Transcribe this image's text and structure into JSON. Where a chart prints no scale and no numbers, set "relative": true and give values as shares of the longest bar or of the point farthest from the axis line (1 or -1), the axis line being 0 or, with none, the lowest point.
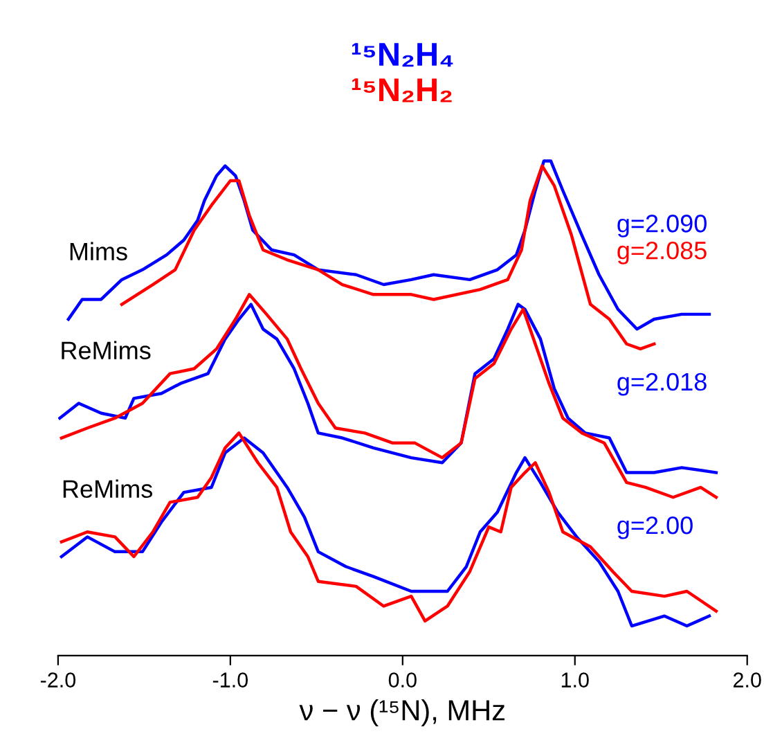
{
  "chart_data": {
    "type": "line",
    "relative": true,
    "xlabel": "ν − ν (¹⁵N), MHz",
    "xlim": [
      -2,
      2
    ],
    "xticks": [
      {
        "value": -2,
        "label": "-2.0"
      },
      {
        "value": -1,
        "label": "-1.0"
      },
      {
        "value": 0,
        "label": "0.0"
      },
      {
        "value": 1,
        "label": "1.0"
      },
      {
        "value": 2,
        "label": "2.0"
      }
    ],
    "tick_labels": "x",
    "grid": false,
    "legend": "top",
    "marker": "none",
    "line_style": "solid",
    "annotations": [
      "Mims",
      "ReMims",
      "ReMims",
      "g=2.090",
      "g=2.085",
      "g=2.018",
      "g=2.00"
    ],
    "series": [
      {
        "name": "¹⁵N₂H₄",
        "color": "#0000ff",
        "x": [
          -1.94,
          -1.86,
          -1.75,
          -1.63,
          -1.51,
          -1.37,
          -1.27,
          -1.19,
          -1.15,
          -1.08,
          -1.03,
          -0.97,
          -0.92,
          -0.87,
          -0.76,
          -0.63,
          -0.49,
          -0.27,
          -0.11,
          0.05,
          0.18,
          0.39,
          0.55,
          0.66,
          0.71,
          0.77,
          0.82,
          0.86,
          0.93,
          1.04,
          1.14,
          1.25,
          1.36,
          1.46,
          1.62,
          1.78
        ],
        "values": [
          0.68,
          0.72,
          0.72,
          0.76,
          0.78,
          0.81,
          0.84,
          0.88,
          0.92,
          0.97,
          0.99,
          0.97,
          0.92,
          0.86,
          0.82,
          0.81,
          0.78,
          0.77,
          0.75,
          0.76,
          0.77,
          0.76,
          0.78,
          0.81,
          0.86,
          0.94,
          1.0,
          1.0,
          0.94,
          0.85,
          0.77,
          0.7,
          0.66,
          0.68,
          0.69,
          0.69
        ]
      },
      {
        "name": "¹⁵N₂H₂",
        "color": "#ff0000",
        "x": [
          -1.63,
          -1.45,
          -1.32,
          -1.21,
          -1.11,
          -1.0,
          -0.95,
          -0.89,
          -0.81,
          -0.67,
          -0.49,
          -0.35,
          -0.17,
          0.05,
          0.18,
          0.45,
          0.61,
          0.69,
          0.74,
          0.81,
          0.88,
          0.98,
          1.09,
          1.2,
          1.3,
          1.38,
          1.46
        ],
        "values": [
          0.71,
          0.75,
          0.78,
          0.86,
          0.91,
          0.96,
          0.96,
          0.89,
          0.82,
          0.8,
          0.78,
          0.75,
          0.73,
          0.73,
          0.72,
          0.74,
          0.76,
          0.82,
          0.92,
          0.99,
          0.95,
          0.85,
          0.71,
          0.68,
          0.63,
          0.62,
          0.63
        ]
      },
      {
        "color": "#0000ff",
        "x": [
          -1.99,
          -1.88,
          -1.75,
          -1.61,
          -1.56,
          -1.4,
          -1.29,
          -1.13,
          -1.03,
          -0.95,
          -0.88,
          -0.81,
          -0.73,
          -0.63,
          -0.55,
          -0.49,
          -0.35,
          -0.17,
          0.05,
          0.23,
          0.34,
          0.42,
          0.53,
          0.61,
          0.67,
          0.71,
          0.8,
          0.88,
          0.96,
          1.06,
          1.2,
          1.3,
          1.46,
          1.62,
          1.82
        ],
        "values": [
          0.48,
          0.51,
          0.49,
          0.48,
          0.52,
          0.53,
          0.55,
          0.57,
          0.64,
          0.68,
          0.71,
          0.66,
          0.64,
          0.58,
          0.51,
          0.45,
          0.44,
          0.42,
          0.4,
          0.39,
          0.43,
          0.57,
          0.6,
          0.66,
          0.71,
          0.7,
          0.64,
          0.54,
          0.48,
          0.45,
          0.44,
          0.37,
          0.37,
          0.38,
          0.37
        ]
      },
      {
        "color": "#ff0000",
        "x": [
          -1.98,
          -1.83,
          -1.67,
          -1.51,
          -1.35,
          -1.21,
          -1.08,
          -0.97,
          -0.89,
          -0.79,
          -0.67,
          -0.59,
          -0.49,
          -0.39,
          -0.22,
          -0.06,
          0.07,
          0.23,
          0.34,
          0.42,
          0.53,
          0.63,
          0.7,
          0.77,
          0.85,
          0.93,
          1.04,
          1.17,
          1.3,
          1.41,
          1.57,
          1.73,
          1.82
        ],
        "values": [
          0.44,
          0.46,
          0.48,
          0.51,
          0.57,
          0.58,
          0.62,
          0.68,
          0.73,
          0.69,
          0.64,
          0.58,
          0.51,
          0.46,
          0.45,
          0.43,
          0.43,
          0.4,
          0.43,
          0.56,
          0.59,
          0.66,
          0.7,
          0.63,
          0.55,
          0.48,
          0.45,
          0.43,
          0.35,
          0.34,
          0.32,
          0.34,
          0.32
        ]
      },
      {
        "color": "#0000ff",
        "x": [
          -1.98,
          -1.83,
          -1.67,
          -1.51,
          -1.4,
          -1.27,
          -1.11,
          -1.03,
          -0.92,
          -0.81,
          -0.67,
          -0.57,
          -0.49,
          -0.33,
          -0.17,
          0.05,
          0.13,
          0.26,
          0.37,
          0.45,
          0.55,
          0.66,
          0.71,
          0.8,
          0.9,
          1.01,
          1.14,
          1.25,
          1.33,
          1.52,
          1.65,
          1.78
        ],
        "values": [
          0.2,
          0.24,
          0.21,
          0.21,
          0.27,
          0.33,
          0.34,
          0.41,
          0.44,
          0.41,
          0.34,
          0.28,
          0.21,
          0.18,
          0.16,
          0.13,
          0.13,
          0.13,
          0.18,
          0.25,
          0.29,
          0.37,
          0.4,
          0.35,
          0.29,
          0.24,
          0.19,
          0.13,
          0.06,
          0.08,
          0.06,
          0.08
        ]
      },
      {
        "color": "#ff0000",
        "x": [
          -1.98,
          -1.83,
          -1.67,
          -1.56,
          -1.45,
          -1.35,
          -1.19,
          -1.11,
          -1.03,
          -0.95,
          -0.84,
          -0.73,
          -0.65,
          -0.55,
          -0.49,
          -0.27,
          -0.11,
          0.05,
          0.13,
          0.26,
          0.39,
          0.5,
          0.57,
          0.63,
          0.71,
          0.77,
          0.85,
          0.93,
          1.09,
          1.22,
          1.33,
          1.52,
          1.65,
          1.82
        ],
        "values": [
          0.23,
          0.25,
          0.24,
          0.2,
          0.25,
          0.31,
          0.32,
          0.36,
          0.42,
          0.45,
          0.39,
          0.34,
          0.25,
          0.2,
          0.15,
          0.14,
          0.1,
          0.12,
          0.07,
          0.1,
          0.17,
          0.26,
          0.25,
          0.34,
          0.37,
          0.39,
          0.33,
          0.25,
          0.22,
          0.17,
          0.13,
          0.12,
          0.13,
          0.09
        ]
      }
    ]
  }
}
